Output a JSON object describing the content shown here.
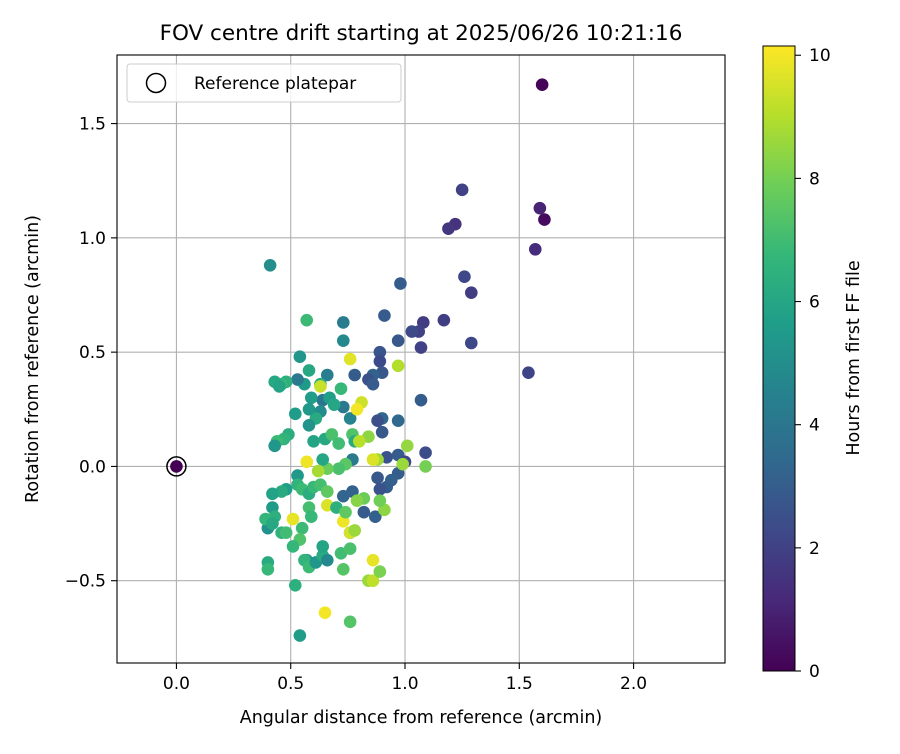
{
  "chart_data": {
    "type": "scatter",
    "title": "FOV centre drift starting at 2025/06/26 10:21:16",
    "xlabel": "Angular distance from reference (arcmin)",
    "ylabel": "Rotation from reference (arcmin)",
    "xlim": [
      -0.26,
      2.4
    ],
    "ylim": [
      -0.86,
      1.8
    ],
    "xticks": [
      0.0,
      0.5,
      1.0,
      1.5,
      2.0
    ],
    "xtick_labels": [
      "0.0",
      "0.5",
      "1.0",
      "1.5",
      "2.0"
    ],
    "yticks": [
      -0.5,
      0.0,
      0.5,
      1.0,
      1.5
    ],
    "ytick_labels": [
      "−0.5",
      "0.0",
      "0.5",
      "1.0",
      "1.5"
    ],
    "grid": true,
    "legend": {
      "placement": "upper left",
      "entries": [
        "Reference platepar"
      ]
    },
    "reference": {
      "x": 0.0,
      "y": 0.0,
      "label": "Reference platepar"
    },
    "colorbar": {
      "label": "Hours from first FF file",
      "range": [
        0,
        10.15
      ],
      "ticks": [
        0,
        2,
        4,
        6,
        8,
        10
      ],
      "tick_labels": [
        "0",
        "2",
        "4",
        "6",
        "8",
        "10"
      ],
      "colormap": "viridis"
    },
    "colormap_stops": [
      "#440154",
      "#482878",
      "#3e4989",
      "#31688e",
      "#26828e",
      "#1f9e89",
      "#35b779",
      "#6ece58",
      "#b5de2b",
      "#fde725"
    ],
    "points": [
      {
        "x": 0.0,
        "y": 0.0,
        "h": 0.0
      },
      {
        "x": 1.6,
        "y": 1.67,
        "h": 0.1
      },
      {
        "x": 1.61,
        "y": 1.08,
        "h": 0.3
      },
      {
        "x": 1.59,
        "y": 1.13,
        "h": 1.0
      },
      {
        "x": 1.57,
        "y": 0.95,
        "h": 1.3
      },
      {
        "x": 1.54,
        "y": 0.41,
        "h": 2.1
      },
      {
        "x": 1.25,
        "y": 1.21,
        "h": 2.0
      },
      {
        "x": 1.22,
        "y": 1.06,
        "h": 1.5
      },
      {
        "x": 1.19,
        "y": 1.04,
        "h": 1.6
      },
      {
        "x": 1.26,
        "y": 0.83,
        "h": 2.2
      },
      {
        "x": 1.29,
        "y": 0.76,
        "h": 1.8
      },
      {
        "x": 1.29,
        "y": 0.54,
        "h": 2.2
      },
      {
        "x": 1.17,
        "y": 0.64,
        "h": 1.9
      },
      {
        "x": 1.08,
        "y": 0.63,
        "h": 1.8
      },
      {
        "x": 1.06,
        "y": 0.59,
        "h": 2.0
      },
      {
        "x": 1.03,
        "y": 0.59,
        "h": 2.3
      },
      {
        "x": 1.07,
        "y": 0.52,
        "h": 2.0
      },
      {
        "x": 0.98,
        "y": 0.8,
        "h": 3.0
      },
      {
        "x": 0.91,
        "y": 0.66,
        "h": 2.9
      },
      {
        "x": 0.97,
        "y": 0.55,
        "h": 2.8
      },
      {
        "x": 1.07,
        "y": 0.29,
        "h": 3.0
      },
      {
        "x": 1.09,
        "y": 0.06,
        "h": 2.4
      },
      {
        "x": 0.89,
        "y": 0.5,
        "h": 2.7
      },
      {
        "x": 0.89,
        "y": 0.46,
        "h": 2.3
      },
      {
        "x": 0.9,
        "y": 0.41,
        "h": 2.8
      },
      {
        "x": 0.86,
        "y": 0.4,
        "h": 3.2
      },
      {
        "x": 0.84,
        "y": 0.38,
        "h": 2.6
      },
      {
        "x": 0.86,
        "y": 0.36,
        "h": 2.9
      },
      {
        "x": 0.78,
        "y": 0.4,
        "h": 3.0
      },
      {
        "x": 0.9,
        "y": 0.21,
        "h": 3.3
      },
      {
        "x": 0.88,
        "y": 0.2,
        "h": 2.5
      },
      {
        "x": 0.97,
        "y": 0.2,
        "h": 3.4
      },
      {
        "x": 0.9,
        "y": 0.15,
        "h": 2.8
      },
      {
        "x": 0.92,
        "y": 0.04,
        "h": 2.6
      },
      {
        "x": 0.97,
        "y": 0.05,
        "h": 2.9
      },
      {
        "x": 1.0,
        "y": 0.02,
        "h": 2.2
      },
      {
        "x": 0.97,
        "y": -0.03,
        "h": 3.0
      },
      {
        "x": 0.94,
        "y": -0.06,
        "h": 3.1
      },
      {
        "x": 0.88,
        "y": -0.05,
        "h": 2.8
      },
      {
        "x": 0.92,
        "y": -0.09,
        "h": 3.0
      },
      {
        "x": 0.89,
        "y": -0.1,
        "h": 2.6
      },
      {
        "x": 0.87,
        "y": -0.22,
        "h": 3.1
      },
      {
        "x": 0.82,
        "y": -0.2,
        "h": 2.9
      },
      {
        "x": 0.77,
        "y": -0.11,
        "h": 3.2
      },
      {
        "x": 0.73,
        "y": -0.13,
        "h": 3.3
      },
      {
        "x": 0.76,
        "y": -0.29,
        "h": 3.1
      },
      {
        "x": 0.73,
        "y": 0.63,
        "h": 4.2
      },
      {
        "x": 0.73,
        "y": 0.55,
        "h": 4.8
      },
      {
        "x": 0.73,
        "y": 0.26,
        "h": 4.1
      },
      {
        "x": 0.76,
        "y": 0.21,
        "h": 4.6
      },
      {
        "x": 0.66,
        "y": 0.4,
        "h": 4.3
      },
      {
        "x": 0.64,
        "y": 0.29,
        "h": 4.0
      },
      {
        "x": 0.63,
        "y": 0.24,
        "h": 4.9
      },
      {
        "x": 0.54,
        "y": 0.48,
        "h": 5.3
      },
      {
        "x": 0.56,
        "y": 0.36,
        "h": 5.5
      },
      {
        "x": 0.53,
        "y": 0.38,
        "h": 4.1
      },
      {
        "x": 0.41,
        "y": 0.88,
        "h": 5.0
      },
      {
        "x": 0.57,
        "y": 0.64,
        "h": 6.9
      },
      {
        "x": 0.58,
        "y": 0.42,
        "h": 6.1
      },
      {
        "x": 0.59,
        "y": 0.3,
        "h": 5.6
      },
      {
        "x": 0.63,
        "y": 0.36,
        "h": 6.2
      },
      {
        "x": 0.67,
        "y": 0.3,
        "h": 5.7
      },
      {
        "x": 0.69,
        "y": 0.27,
        "h": 6.0
      },
      {
        "x": 0.72,
        "y": 0.34,
        "h": 6.8
      },
      {
        "x": 0.61,
        "y": 0.21,
        "h": 6.2
      },
      {
        "x": 0.58,
        "y": 0.25,
        "h": 5.4
      },
      {
        "x": 0.52,
        "y": 0.23,
        "h": 5.6
      },
      {
        "x": 0.48,
        "y": 0.37,
        "h": 6.4
      },
      {
        "x": 0.46,
        "y": 0.36,
        "h": 6.7
      },
      {
        "x": 0.43,
        "y": 0.37,
        "h": 6.1
      },
      {
        "x": 0.45,
        "y": 0.35,
        "h": 5.9
      },
      {
        "x": 0.49,
        "y": 0.14,
        "h": 6.3
      },
      {
        "x": 0.47,
        "y": 0.12,
        "h": 6.6
      },
      {
        "x": 0.44,
        "y": 0.11,
        "h": 6.9
      },
      {
        "x": 0.43,
        "y": 0.09,
        "h": 5.3
      },
      {
        "x": 0.58,
        "y": 0.18,
        "h": 5.2
      },
      {
        "x": 0.6,
        "y": 0.11,
        "h": 5.9
      },
      {
        "x": 0.65,
        "y": 0.12,
        "h": 6.1
      },
      {
        "x": 0.68,
        "y": 0.14,
        "h": 7.2
      },
      {
        "x": 0.71,
        "y": 0.1,
        "h": 7.0
      },
      {
        "x": 0.77,
        "y": 0.14,
        "h": 7.3
      },
      {
        "x": 0.78,
        "y": 0.11,
        "h": 6.2
      },
      {
        "x": 0.77,
        "y": 0.03,
        "h": 4.1
      },
      {
        "x": 0.74,
        "y": 0.01,
        "h": 7.5
      },
      {
        "x": 0.71,
        "y": -0.01,
        "h": 7.2
      },
      {
        "x": 0.66,
        "y": -0.01,
        "h": 7.8
      },
      {
        "x": 0.64,
        "y": 0.03,
        "h": 6.0
      },
      {
        "x": 0.62,
        "y": -0.02,
        "h": 8.8
      },
      {
        "x": 0.57,
        "y": 0.02,
        "h": 9.9
      },
      {
        "x": 0.53,
        "y": -0.04,
        "h": 5.4
      },
      {
        "x": 0.53,
        "y": -0.08,
        "h": 6.6
      },
      {
        "x": 0.55,
        "y": -0.1,
        "h": 6.9
      },
      {
        "x": 0.58,
        "y": -0.12,
        "h": 6.3
      },
      {
        "x": 0.6,
        "y": -0.09,
        "h": 6.8
      },
      {
        "x": 0.63,
        "y": -0.08,
        "h": 7.1
      },
      {
        "x": 0.66,
        "y": -0.11,
        "h": 7.6
      },
      {
        "x": 0.48,
        "y": -0.1,
        "h": 5.7
      },
      {
        "x": 0.46,
        "y": -0.11,
        "h": 6.2
      },
      {
        "x": 0.42,
        "y": -0.12,
        "h": 5.8
      },
      {
        "x": 0.42,
        "y": -0.18,
        "h": 5.5
      },
      {
        "x": 0.43,
        "y": -0.22,
        "h": 6.4
      },
      {
        "x": 0.4,
        "y": -0.27,
        "h": 5.1
      },
      {
        "x": 0.39,
        "y": -0.23,
        "h": 6.7
      },
      {
        "x": 0.42,
        "y": -0.25,
        "h": 6.1
      },
      {
        "x": 0.46,
        "y": -0.29,
        "h": 6.5
      },
      {
        "x": 0.48,
        "y": -0.29,
        "h": 7.0
      },
      {
        "x": 0.51,
        "y": -0.23,
        "h": 9.8
      },
      {
        "x": 0.55,
        "y": -0.27,
        "h": 6.9
      },
      {
        "x": 0.54,
        "y": -0.32,
        "h": 7.3
      },
      {
        "x": 0.51,
        "y": -0.35,
        "h": 6.7
      },
      {
        "x": 0.58,
        "y": -0.18,
        "h": 7.1
      },
      {
        "x": 0.59,
        "y": -0.22,
        "h": 6.8
      },
      {
        "x": 0.66,
        "y": -0.17,
        "h": 9.6
      },
      {
        "x": 0.7,
        "y": -0.18,
        "h": 6.4
      },
      {
        "x": 0.73,
        "y": -0.24,
        "h": 9.9
      },
      {
        "x": 0.74,
        "y": -0.2,
        "h": 7.6
      },
      {
        "x": 0.76,
        "y": -0.29,
        "h": 9.5
      },
      {
        "x": 0.78,
        "y": -0.28,
        "h": 8.6
      },
      {
        "x": 0.82,
        "y": -0.14,
        "h": 7.8
      },
      {
        "x": 0.79,
        "y": -0.15,
        "h": 8.3
      },
      {
        "x": 0.88,
        "y": 0.03,
        "h": 8.7
      },
      {
        "x": 0.86,
        "y": 0.03,
        "h": 9.6
      },
      {
        "x": 0.91,
        "y": -0.19,
        "h": 8.4
      },
      {
        "x": 0.89,
        "y": -0.15,
        "h": 7.9
      },
      {
        "x": 0.57,
        "y": -0.41,
        "h": 5.2
      },
      {
        "x": 0.56,
        "y": -0.41,
        "h": 6.6
      },
      {
        "x": 0.58,
        "y": -0.44,
        "h": 6.9
      },
      {
        "x": 0.61,
        "y": -0.42,
        "h": 5.3
      },
      {
        "x": 0.64,
        "y": -0.39,
        "h": 6.2
      },
      {
        "x": 0.66,
        "y": -0.41,
        "h": 4.8
      },
      {
        "x": 0.64,
        "y": -0.35,
        "h": 5.9
      },
      {
        "x": 0.72,
        "y": -0.38,
        "h": 7.0
      },
      {
        "x": 0.76,
        "y": -0.36,
        "h": 7.2
      },
      {
        "x": 0.73,
        "y": -0.45,
        "h": 7.4
      },
      {
        "x": 0.84,
        "y": -0.5,
        "h": 8.6
      },
      {
        "x": 0.86,
        "y": -0.41,
        "h": 9.8
      },
      {
        "x": 0.86,
        "y": -0.5,
        "h": 9.2
      },
      {
        "x": 0.89,
        "y": -0.46,
        "h": 8.1
      },
      {
        "x": 0.4,
        "y": -0.42,
        "h": 6.2
      },
      {
        "x": 0.4,
        "y": -0.45,
        "h": 6.8
      },
      {
        "x": 0.52,
        "y": -0.52,
        "h": 6.4
      },
      {
        "x": 0.65,
        "y": -0.64,
        "h": 10.0
      },
      {
        "x": 0.76,
        "y": -0.68,
        "h": 7.4
      },
      {
        "x": 0.54,
        "y": -0.74,
        "h": 5.6
      },
      {
        "x": 0.81,
        "y": 0.28,
        "h": 9.4
      },
      {
        "x": 0.79,
        "y": 0.25,
        "h": 10.0
      },
      {
        "x": 0.76,
        "y": 0.47,
        "h": 9.7
      },
      {
        "x": 0.97,
        "y": 0.44,
        "h": 9.0
      },
      {
        "x": 0.84,
        "y": 0.13,
        "h": 8.4
      },
      {
        "x": 0.8,
        "y": 0.11,
        "h": 9.1
      },
      {
        "x": 1.01,
        "y": 0.09,
        "h": 8.5
      },
      {
        "x": 0.99,
        "y": 0.01,
        "h": 8.6
      },
      {
        "x": 1.09,
        "y": 0.0,
        "h": 8.0
      },
      {
        "x": 0.63,
        "y": 0.35,
        "h": 9.3
      }
    ]
  }
}
